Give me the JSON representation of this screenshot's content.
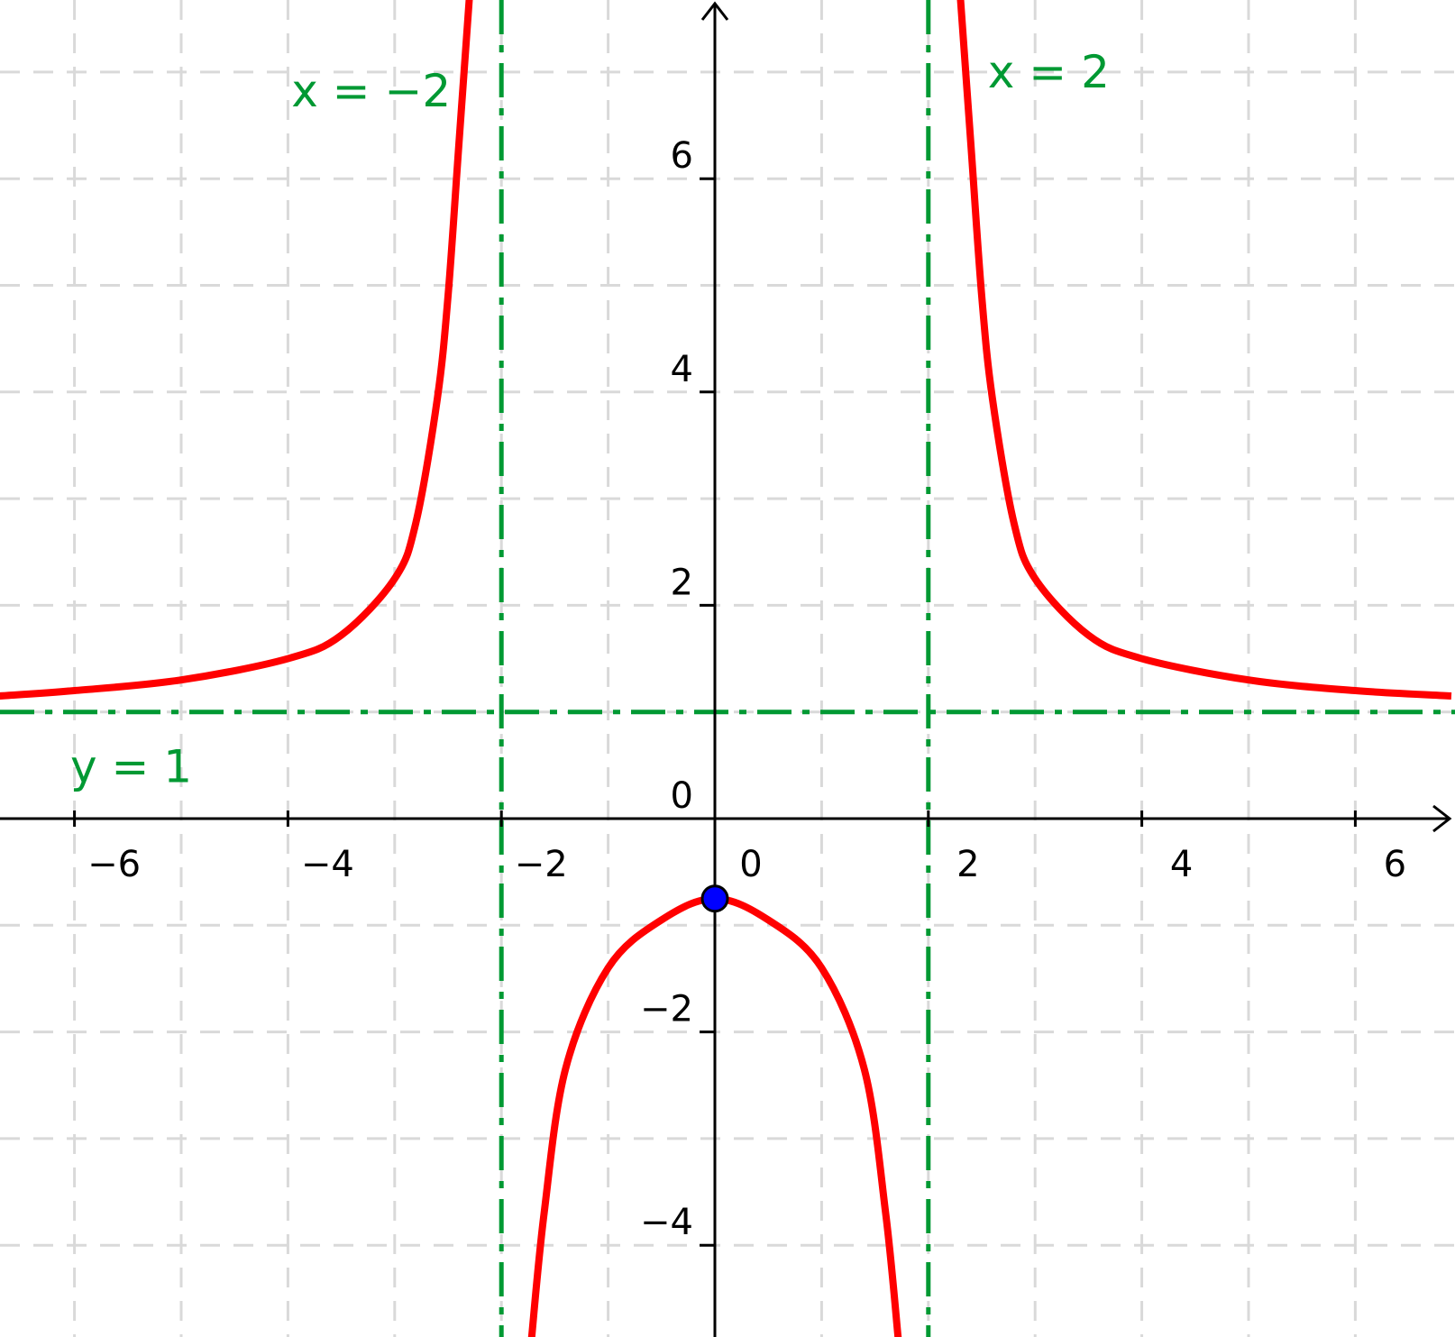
{
  "chart_data": {
    "type": "line",
    "xlim": [
      -6.7,
      6.9
    ],
    "ylim": [
      -4.9,
      7.7
    ],
    "grid": true,
    "x_ticks": [
      -6,
      -4,
      -2,
      0,
      2,
      4,
      6
    ],
    "y_ticks": [
      -4,
      -2,
      0,
      2,
      4,
      6
    ],
    "x_tick_labels": [
      "−6",
      "−4",
      "−2",
      "0",
      "2",
      "4",
      "6"
    ],
    "y_tick_labels": [
      "−4",
      "−2",
      "0",
      "2",
      "4",
      "6"
    ],
    "series": [
      {
        "color": "#ff0000",
        "branches": [
          [
            [
              -6.7,
              1.15
            ],
            [
              -6.0,
              1.2
            ],
            [
              -5.0,
              1.3
            ],
            [
              -4.0,
              1.5
            ],
            [
              -3.5,
              1.72
            ],
            [
              -3.0,
              2.25
            ],
            [
              -2.8,
              2.78
            ],
            [
              -2.6,
              3.94
            ],
            [
              -2.5,
              4.9
            ],
            [
              -2.4,
              6.3
            ],
            [
              -2.3,
              7.7
            ]
          ],
          [
            [
              -1.72,
              -4.9
            ],
            [
              -1.6,
              -3.7
            ],
            [
              -1.4,
              -2.35
            ],
            [
              -1.0,
              -1.4
            ],
            [
              -0.5,
              -0.95
            ],
            [
              0.0,
              -0.75
            ],
            [
              0.5,
              -0.95
            ],
            [
              1.0,
              -1.4
            ],
            [
              1.4,
              -2.35
            ],
            [
              1.6,
              -3.7
            ],
            [
              1.72,
              -4.9
            ]
          ],
          [
            [
              2.3,
              7.7
            ],
            [
              2.4,
              6.3
            ],
            [
              2.5,
              4.9
            ],
            [
              2.6,
              3.94
            ],
            [
              2.8,
              2.78
            ],
            [
              3.0,
              2.25
            ],
            [
              3.5,
              1.72
            ],
            [
              4.0,
              1.5
            ],
            [
              5.0,
              1.3
            ],
            [
              6.0,
              1.2
            ],
            [
              6.9,
              1.15
            ]
          ]
        ]
      }
    ],
    "asymptotes": [
      {
        "orientation": "vertical",
        "value": -2,
        "label": "x = −2",
        "color": "#009933"
      },
      {
        "orientation": "vertical",
        "value": 2,
        "label": "x = 2",
        "color": "#009933"
      },
      {
        "orientation": "horizontal",
        "value": 1,
        "label": "y = 1",
        "color": "#009933"
      }
    ],
    "points": [
      {
        "x": 0,
        "y": -0.75,
        "color": "#0000ff"
      }
    ]
  }
}
